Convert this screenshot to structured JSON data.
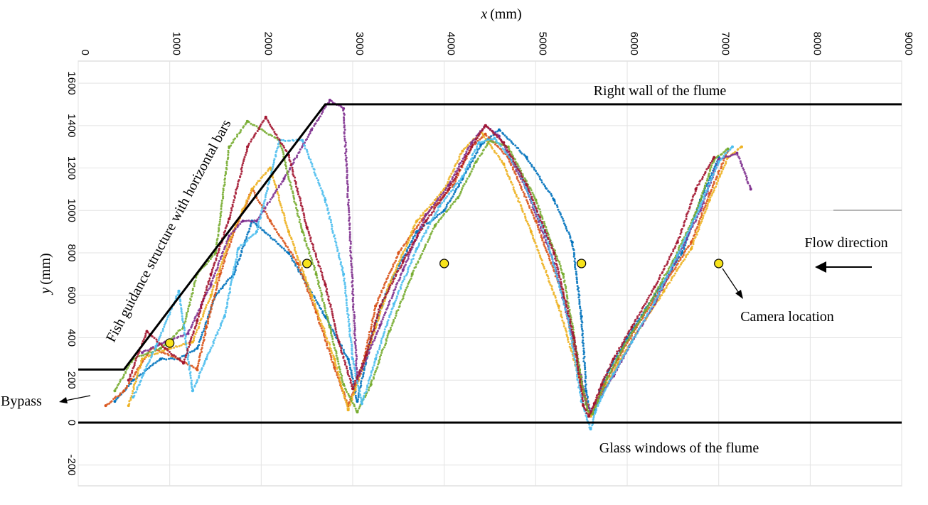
{
  "chart_data": {
    "type": "scatter",
    "title": "",
    "xlabel": "x",
    "xlabel_unit": "(mm)",
    "ylabel": "y",
    "ylabel_unit": "(mm)",
    "xlim": [
      0,
      9000
    ],
    "ylim": [
      -300,
      1700
    ],
    "grid": true,
    "x_ticks": [
      0,
      1000,
      2000,
      3000,
      4000,
      5000,
      6000,
      7000,
      8000,
      9000
    ],
    "x_tick_labels": [
      "0",
      "1000",
      "2000",
      "3000",
      "4000",
      "5000",
      "6000",
      "7000",
      "8000",
      "9000"
    ],
    "y_ticks": [
      -200,
      0,
      200,
      400,
      600,
      800,
      1000,
      1200,
      1400,
      1600
    ],
    "y_tick_labels": [
      "-200",
      "0",
      "200",
      "400",
      "600",
      "800",
      "1000",
      "1200",
      "1400",
      "1600"
    ],
    "structure_lines": [
      {
        "name": "fish-guidance-and-right-wall",
        "x": [
          0,
          500,
          2700,
          9000
        ],
        "y": [
          250,
          250,
          1500,
          1500
        ]
      },
      {
        "name": "glass-windows",
        "x": [
          0,
          9000
        ],
        "y": [
          0,
          0
        ]
      }
    ],
    "camera_locations": [
      {
        "x": 1000,
        "y": 375
      },
      {
        "x": 2500,
        "y": 750
      },
      {
        "x": 4000,
        "y": 750
      },
      {
        "x": 5500,
        "y": 750
      },
      {
        "x": 7000,
        "y": 750
      }
    ],
    "annotations": {
      "right_wall": "Right wall of the flume",
      "glass_windows": "Glass windows of the flume",
      "guidance_structure": "Fish guidance structure with horizontal bars",
      "flow_direction": "Flow direction",
      "camera_location": "Camera location",
      "bypass": "Bypass"
    },
    "series": [
      {
        "name": "track-blue",
        "color": "#0072BD",
        "x": [
          7000,
          6800,
          6600,
          6300,
          6000,
          5800,
          5700,
          5650,
          5600,
          5550,
          5500,
          5400,
          5200,
          4900,
          4600,
          4400,
          4200,
          4000,
          3700,
          3400,
          3200,
          3050,
          2950,
          2700,
          2300,
          1900,
          1700,
          1500,
          1300,
          1100,
          900,
          600,
          400
        ],
        "y": [
          1250,
          1050,
          800,
          600,
          400,
          250,
          150,
          60,
          30,
          150,
          500,
          850,
          1050,
          1250,
          1380,
          1310,
          1150,
          1000,
          900,
          650,
          400,
          100,
          300,
          500,
          800,
          950,
          700,
          600,
          350,
          300,
          300,
          200,
          100
        ]
      },
      {
        "name": "track-orange",
        "color": "#D95319",
        "x": [
          7100,
          6900,
          6700,
          6400,
          6100,
          5900,
          5750,
          5650,
          5600,
          5500,
          5300,
          5000,
          4700,
          4450,
          4300,
          4100,
          3800,
          3500,
          3250,
          3100,
          2950,
          2800,
          2600,
          2400,
          2100,
          1900,
          1700,
          1550,
          1400,
          1300,
          1100,
          800,
          500,
          300
        ],
        "y": [
          1280,
          1080,
          850,
          650,
          450,
          300,
          180,
          90,
          40,
          180,
          600,
          950,
          1250,
          1360,
          1300,
          1120,
          980,
          800,
          550,
          250,
          80,
          260,
          520,
          750,
          950,
          1100,
          900,
          700,
          450,
          250,
          300,
          350,
          150,
          80
        ]
      },
      {
        "name": "track-yellow",
        "color": "#EDB120",
        "x": [
          7250,
          7100,
          6900,
          6700,
          6400,
          6100,
          5900,
          5750,
          5650,
          5600,
          5500,
          5250,
          4950,
          4650,
          4400,
          4200,
          4000,
          3700,
          3400,
          3250,
          3100,
          2950,
          2800,
          2550,
          2300,
          2100,
          1900,
          1650,
          1450,
          1250,
          1000,
          700,
          550
        ],
        "y": [
          1300,
          1250,
          1050,
          820,
          620,
          420,
          280,
          160,
          80,
          30,
          170,
          550,
          900,
          1220,
          1370,
          1280,
          1100,
          950,
          650,
          450,
          250,
          60,
          300,
          600,
          900,
          1200,
          1100,
          860,
          600,
          380,
          350,
          300,
          80
        ]
      },
      {
        "name": "track-purple",
        "color": "#7E2F8E",
        "x": [
          7350,
          7200,
          7000,
          6800,
          6550,
          6300,
          6050,
          5850,
          5700,
          5600,
          5550,
          5450,
          5200,
          4900,
          4600,
          4450,
          4300,
          4050,
          3800,
          3550,
          3300,
          3050,
          2900,
          2750,
          2550,
          2250,
          1950,
          1800,
          1650,
          1450,
          1200,
          950,
          700
        ],
        "y": [
          1100,
          1270,
          1240,
          1000,
          780,
          560,
          380,
          220,
          120,
          50,
          90,
          320,
          750,
          1100,
          1350,
          1400,
          1320,
          1120,
          980,
          720,
          460,
          200,
          1480,
          1520,
          1380,
          1150,
          950,
          950,
          880,
          650,
          420,
          380,
          330
        ]
      },
      {
        "name": "track-green",
        "color": "#77AC30",
        "x": [
          7100,
          6950,
          6750,
          6500,
          6200,
          5950,
          5780,
          5680,
          5620,
          5560,
          5480,
          5300,
          5000,
          4700,
          4500,
          4350,
          4150,
          3900,
          3650,
          3400,
          3200,
          3050,
          2900,
          2750,
          2600,
          2450,
          2200,
          1850,
          1650,
          1500,
          1300,
          1150,
          900,
          600,
          400
        ],
        "y": [
          1290,
          1240,
          990,
          760,
          530,
          350,
          210,
          100,
          40,
          60,
          250,
          700,
          1050,
          1300,
          1330,
          1230,
          1060,
          930,
          700,
          430,
          180,
          50,
          180,
          450,
          700,
          900,
          1330,
          1420,
          1300,
          800,
          700,
          450,
          350,
          300,
          150
        ]
      },
      {
        "name": "track-cyan",
        "color": "#4DBEEE",
        "x": [
          7150,
          7000,
          6800,
          6550,
          6300,
          6050,
          5850,
          5720,
          5650,
          5600,
          5500,
          5350,
          5100,
          4800,
          4550,
          4380,
          4200,
          3950,
          3700,
          3450,
          3250,
          3100,
          3000,
          2900,
          2700,
          2450,
          2200,
          1950,
          1750,
          1600,
          1400,
          1250,
          1100,
          850,
          600
        ],
        "y": [
          1300,
          1230,
          1020,
          790,
          570,
          380,
          230,
          120,
          50,
          -30,
          100,
          500,
          900,
          1200,
          1340,
          1320,
          1160,
          1020,
          820,
          560,
          300,
          90,
          300,
          700,
          1050,
          1330,
          1330,
          900,
          820,
          500,
          300,
          150,
          620,
          360,
          120
        ]
      },
      {
        "name": "track-red",
        "color": "#A2142F",
        "x": [
          6950,
          6750,
          6550,
          6300,
          6050,
          5850,
          5720,
          5640,
          5580,
          5520,
          5420,
          5200,
          4900,
          4650,
          4450,
          4300,
          4050,
          3800,
          3550,
          3300,
          3150,
          3000,
          2850,
          2700,
          2500,
          2300,
          2050,
          1850,
          1650,
          1450,
          1300,
          1150,
          950,
          750,
          550
        ],
        "y": [
          1250,
          1100,
          850,
          640,
          450,
          300,
          180,
          90,
          30,
          80,
          400,
          800,
          1120,
          1320,
          1400,
          1300,
          1100,
          950,
          760,
          550,
          320,
          160,
          380,
          650,
          920,
          1260,
          1440,
          1300,
          960,
          700,
          480,
          280,
          350,
          430,
          200
        ]
      }
    ]
  }
}
